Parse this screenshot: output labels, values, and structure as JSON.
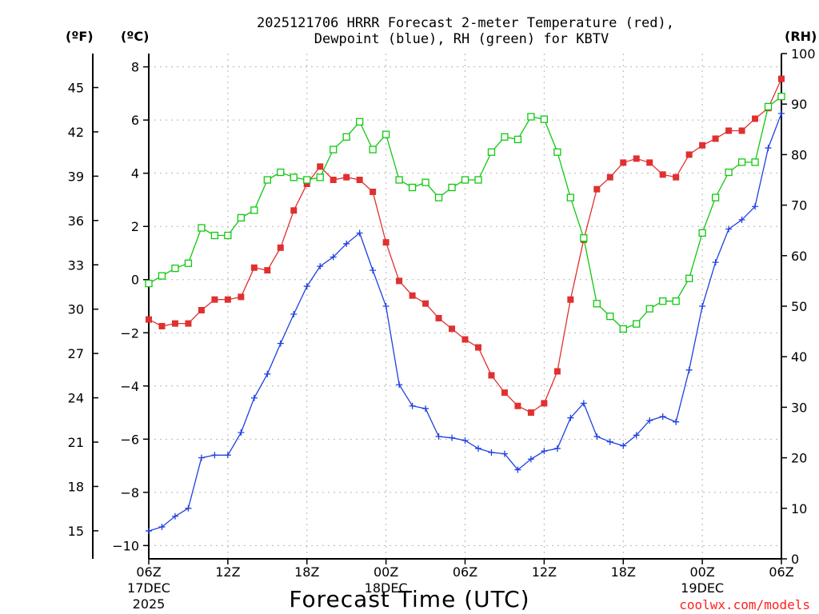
{
  "chart_data": {
    "type": "line",
    "title_lines": [
      "2025121706 HRRR Forecast 2-meter Temperature (red),",
      "Dewpoint (blue), RH (green) for KBTV"
    ],
    "xlabel": "Forecast Time (UTC)",
    "credit": "coolwx.com/models",
    "units": {
      "fahrenheit": "(ºF)",
      "celsius": "(ºC)",
      "rh": "(RH)"
    },
    "x_range": [
      0,
      48
    ],
    "x_ticks": [
      {
        "x": 0,
        "label": "06Z",
        "sub1": "17DEC",
        "sub2": "2025"
      },
      {
        "x": 6,
        "label": "12Z",
        "sub1": "",
        "sub2": ""
      },
      {
        "x": 12,
        "label": "18Z",
        "sub1": "",
        "sub2": ""
      },
      {
        "x": 18,
        "label": "00Z",
        "sub1": "18DEC",
        "sub2": ""
      },
      {
        "x": 24,
        "label": "06Z",
        "sub1": "",
        "sub2": ""
      },
      {
        "x": 30,
        "label": "12Z",
        "sub1": "",
        "sub2": ""
      },
      {
        "x": 36,
        "label": "18Z",
        "sub1": "",
        "sub2": ""
      },
      {
        "x": 42,
        "label": "00Z",
        "sub1": "19DEC",
        "sub2": ""
      },
      {
        "x": 48,
        "label": "06Z",
        "sub1": "",
        "sub2": ""
      }
    ],
    "celsius_axis": {
      "range": [
        -10.5,
        8.5
      ],
      "ticks": [
        8,
        6,
        4,
        2,
        0,
        -2,
        -4,
        -6,
        -8,
        -10
      ],
      "labels": [
        "8",
        "6",
        "4",
        "2",
        "0",
        "−2",
        "−4",
        "−6",
        "−8",
        "−10"
      ]
    },
    "fahrenheit_axis": {
      "ticks": [
        45,
        42,
        39,
        36,
        33,
        30,
        27,
        24,
        21,
        18,
        15
      ],
      "labels": [
        "45",
        "42",
        "39",
        "36",
        "33",
        "30",
        "27",
        "24",
        "21",
        "18",
        "15"
      ]
    },
    "rh_axis": {
      "range": [
        0,
        100
      ],
      "ticks": [
        100,
        90,
        80,
        70,
        60,
        50,
        40,
        30,
        20,
        10,
        0
      ],
      "labels": [
        "100",
        "90",
        "80",
        "70",
        "60",
        "50",
        "40",
        "30",
        "20",
        "10",
        "0"
      ]
    },
    "series": [
      {
        "name": "Temperature",
        "units": "C",
        "color": "#e03030",
        "marker": "filled-square",
        "values": [
          -1.5,
          -1.75,
          -1.65,
          -1.65,
          -1.15,
          -0.75,
          -0.75,
          -0.65,
          0.45,
          0.35,
          1.2,
          2.6,
          3.6,
          4.25,
          3.75,
          3.85,
          3.75,
          3.3,
          1.4,
          -0.05,
          -0.6,
          -0.9,
          -1.45,
          -1.85,
          -2.25,
          -2.55,
          -3.6,
          -4.25,
          -4.75,
          -5.0,
          -4.65,
          -3.45,
          -0.75,
          1.5,
          3.4,
          3.85,
          4.4,
          4.55,
          4.4,
          3.95,
          3.85,
          4.7,
          5.05,
          5.3,
          5.6,
          5.6,
          6.05,
          6.45,
          7.55
        ]
      },
      {
        "name": "Dewpoint",
        "units": "C",
        "color": "#2040e0",
        "marker": "plus",
        "values": [
          -9.45,
          -9.3,
          -8.9,
          -8.6,
          -6.7,
          -6.6,
          -6.6,
          -5.75,
          -4.45,
          -3.55,
          -2.4,
          -1.3,
          -0.25,
          0.5,
          0.85,
          1.35,
          1.75,
          0.35,
          -1.0,
          -3.95,
          -4.75,
          -4.85,
          -5.9,
          -5.95,
          -6.05,
          -6.35,
          -6.5,
          -6.55,
          -7.15,
          -6.75,
          -6.45,
          -6.35,
          -5.2,
          -4.65,
          -5.9,
          -6.1,
          -6.25,
          -5.85,
          -5.3,
          -5.15,
          -5.35,
          -3.4,
          -1.0,
          0.65,
          1.9,
          2.25,
          2.75,
          4.95,
          6.25
        ]
      },
      {
        "name": "RH",
        "units": "%",
        "color": "#10c810",
        "marker": "open-square",
        "values": [
          54.5,
          56,
          57.5,
          58.5,
          65.5,
          64,
          64,
          67.5,
          69,
          75,
          76.5,
          75.5,
          75,
          75.5,
          81,
          83.5,
          86.5,
          81,
          84,
          75,
          73.5,
          74.5,
          71.5,
          73.5,
          75,
          75,
          80.5,
          83.5,
          83,
          87.5,
          87,
          80.5,
          71.5,
          63.5,
          50.5,
          48,
          45.5,
          46.5,
          49.5,
          51,
          51,
          55.5,
          64.5,
          71.5,
          76.5,
          78.5,
          78.5,
          89.5,
          91.5
        ]
      }
    ]
  }
}
